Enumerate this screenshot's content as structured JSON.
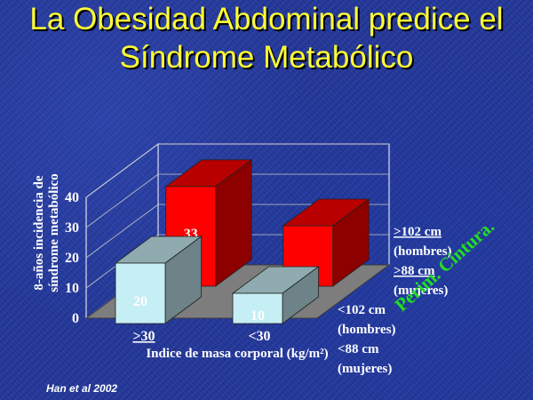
{
  "page": {
    "title_line1": "La Obesidad Abdominal predice el",
    "title_line2": "Síndrome Metabólico",
    "citation": "Han et al 2002"
  },
  "chart_data": {
    "type": "bar",
    "title": "La Obesidad Abdominal predice el Síndrome Metabólico",
    "xlabel": "Indice de masa corporal (kg/m²)",
    "ylabel": "8-años incidencia de síndrome metabólico",
    "ylim": [
      0,
      40
    ],
    "yticks": [
      "0",
      "10",
      "20",
      "30",
      "40"
    ],
    "categories": [
      ">30",
      "<30"
    ],
    "depth_axis_label": "Perim. Cintura.",
    "series": [
      {
        "name": "≥102 cm (hombres) ≥88 cm (mujeres)",
        "label_lines": [
          "≥102 cm",
          "(hombres)",
          "≥88 cm",
          "(mujeres)"
        ],
        "values": [
          33,
          20
        ],
        "color": "#ff0000"
      },
      {
        "name": "<102 cm (hombres) <88 cm (mujeres)",
        "label_lines": [
          "<102 cm",
          "(hombres)",
          "<88 cm",
          "(mujeres)"
        ],
        "values": [
          20,
          10
        ],
        "color": "#c6eef5"
      }
    ],
    "grid": true,
    "projection": "3d"
  },
  "colors": {
    "title": "#ffff33",
    "text": "#ffffff",
    "green_label": "#22dd22",
    "floor": "#7d7d7d"
  }
}
